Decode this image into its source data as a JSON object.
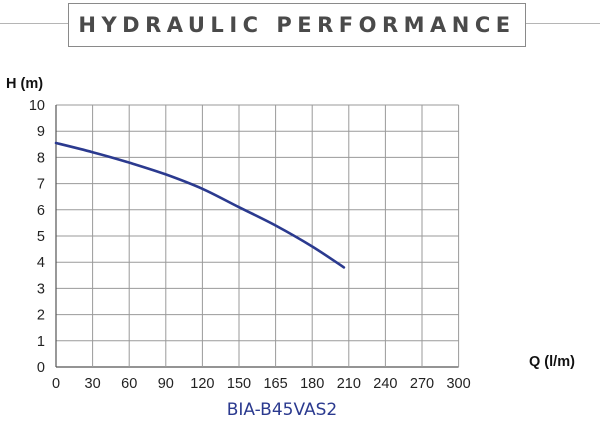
{
  "chart_data": {
    "type": "line",
    "title": "HYDRAULIC PERFORMANCE",
    "xlabel": "Q (l/m)",
    "ylabel": "H (m)",
    "x_ticks": [
      "0",
      "30",
      "60",
      "90",
      "120",
      "150",
      "165",
      "180",
      "210",
      "240",
      "270",
      "300"
    ],
    "y_ticks": [
      "0",
      "1",
      "2",
      "3",
      "4",
      "5",
      "6",
      "7",
      "8",
      "9",
      "10"
    ],
    "ylim": [
      0,
      10
    ],
    "grid": true,
    "legend": "none",
    "series": [
      {
        "name": "BIA-B45VAS2",
        "color": "#2b3a8f",
        "points": [
          [
            0,
            8.55
          ],
          [
            30,
            8.2
          ],
          [
            60,
            7.8
          ],
          [
            90,
            7.35
          ],
          [
            120,
            6.8
          ],
          [
            150,
            6.1
          ],
          [
            165,
            5.4
          ],
          [
            180,
            4.6
          ],
          [
            206,
            3.8
          ]
        ]
      }
    ]
  }
}
